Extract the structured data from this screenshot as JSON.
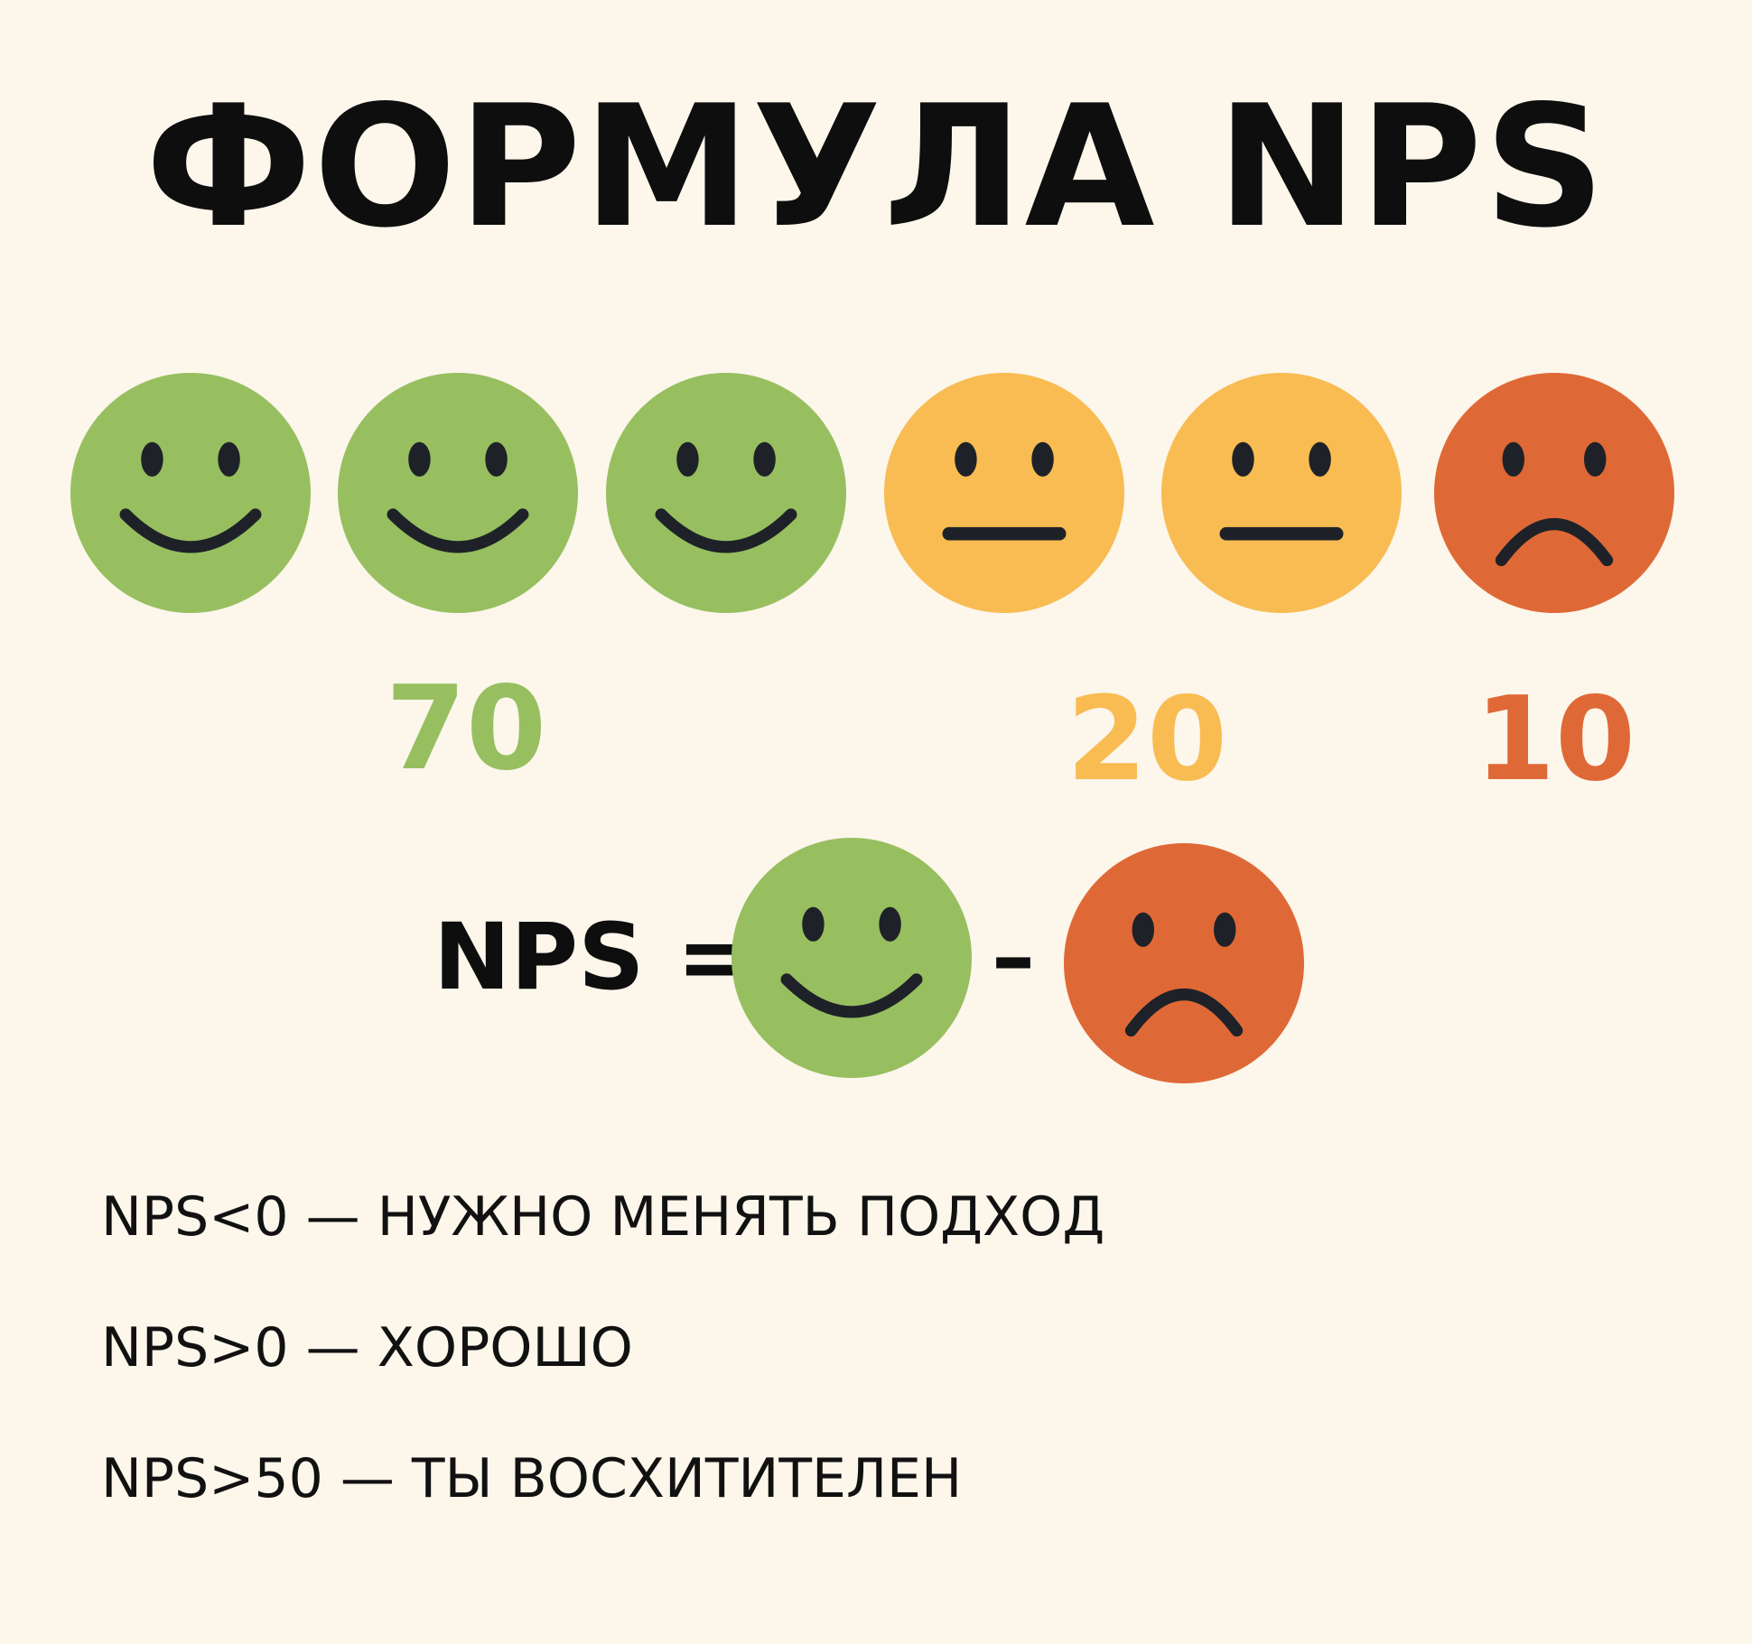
{
  "title": "ФОРМУЛА NPS",
  "faces_row": [
    "happy-face-icon",
    "happy-face-icon",
    "happy-face-icon",
    "neutral-face-icon",
    "neutral-face-icon",
    "sad-face-icon"
  ],
  "counts": {
    "promoters": "70",
    "passives": "20",
    "detractors": "10"
  },
  "formula": {
    "label": "NPS =",
    "operator": "–",
    "left_icon": "happy-face-icon",
    "right_icon": "sad-face-icon"
  },
  "rules": [
    "NPS<0 — НУЖНО МЕНЯТЬ ПОДХОД",
    "NPS>0 — ХОРОШО",
    "NPS>50 — ТЫ ВОСХИТИТЕЛЕН"
  ],
  "colors": {
    "background": "#fcf6eb",
    "green": "#97bf60",
    "yellow": "#f8bc52",
    "red": "#df6936",
    "features": "#1e2228"
  }
}
